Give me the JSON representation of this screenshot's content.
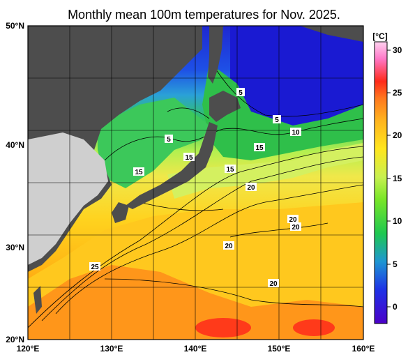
{
  "title": "Monthly mean 100m temperatures for Nov. 2025.",
  "map": {
    "lon_range": [
      120,
      160
    ],
    "lat_range": [
      20,
      50
    ],
    "x_ticks": [
      "120°E",
      "130°E",
      "140°E",
      "150°E",
      "160°E"
    ],
    "y_ticks": [
      "50°N",
      "40°N",
      "30°N",
      "20°N"
    ]
  },
  "colorbar": {
    "unit": "[°C]",
    "range": [
      -2,
      32
    ],
    "ticks": [
      "30",
      "25",
      "20",
      "15",
      "10",
      "5",
      "0"
    ]
  },
  "contour_labels": [
    "5",
    "5",
    "5",
    "10",
    "15",
    "15",
    "15",
    "15",
    "20",
    "20",
    "20",
    "20",
    "20",
    "25"
  ],
  "colors": {
    "land": "#4d4d4d",
    "land_mainland": "#cfcfcf",
    "ice_free_cold": "#1414d2",
    "warm": "#ff8c1a",
    "hot": "#ff2a1a"
  }
}
